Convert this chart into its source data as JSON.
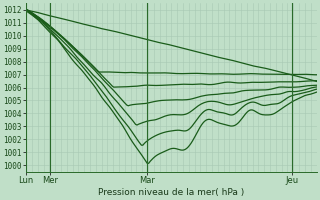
{
  "bg_color": "#c0dfc8",
  "grid_color_major": "#a8c8b4",
  "grid_color_minor": "#b8d8c4",
  "line_color": "#1a5c1a",
  "xlabel_text": "Pression niveau de la mer( hPa )",
  "ylim": [
    999.5,
    1012.5
  ],
  "yticks": [
    1000,
    1001,
    1002,
    1003,
    1004,
    1005,
    1006,
    1007,
    1008,
    1009,
    1010,
    1011,
    1012
  ],
  "xtick_labels": [
    "Lun",
    "Mer",
    "Mar",
    "Jeu"
  ],
  "xtick_positions": [
    0.0,
    0.083,
    0.417,
    0.917
  ],
  "xvline_positions": [
    0.0,
    0.083,
    0.417,
    0.917
  ],
  "xlim": [
    0.0,
    1.0
  ]
}
